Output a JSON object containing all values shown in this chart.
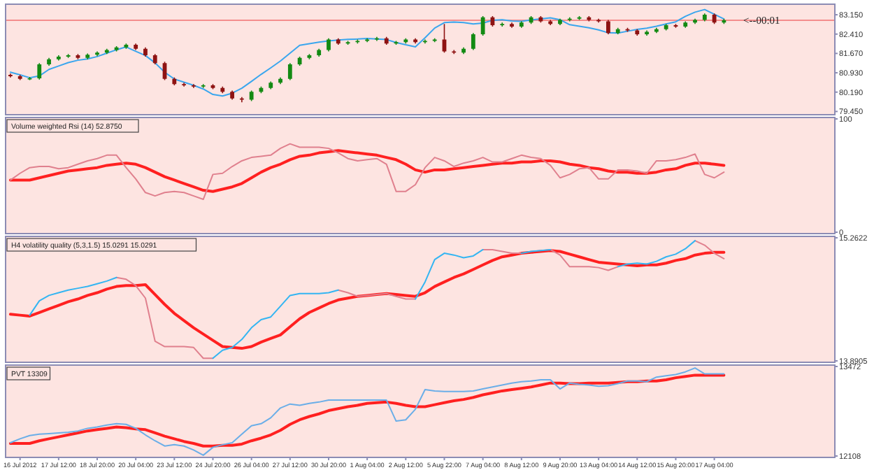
{
  "chart_data": [
    {
      "type": "candlestick",
      "ylim": [
        79.38,
        83.5
      ],
      "tick_labels": "y",
      "yticks": [
        {
          "value": 83.15,
          "label": "83.150"
        },
        {
          "value": 82.41,
          "label": "82.410"
        },
        {
          "value": 81.67,
          "label": "81.670"
        },
        {
          "value": 80.93,
          "label": "80.930"
        },
        {
          "value": 80.19,
          "label": "80.190"
        },
        {
          "value": 79.45,
          "label": "79.450"
        }
      ],
      "categories": [
        null,
        null,
        null,
        null,
        null,
        null,
        null,
        null,
        null,
        null,
        null,
        null,
        null,
        null,
        null,
        null,
        null,
        null,
        null,
        null,
        null,
        null,
        null,
        null,
        null,
        null,
        null,
        null,
        null,
        null,
        null,
        null,
        null,
        null,
        null,
        null,
        null,
        null,
        null,
        null,
        null,
        null,
        null,
        null,
        null,
        null,
        null,
        null,
        null,
        null,
        null,
        null,
        null,
        null,
        null,
        null,
        null,
        null,
        null,
        null,
        null,
        null,
        null,
        null,
        null,
        null,
        null,
        null,
        null,
        null,
        null,
        null,
        null,
        null,
        null,
        null,
        null,
        null,
        null,
        null,
        null,
        null,
        null,
        null,
        null,
        null
      ],
      "ohlc": [
        [
          80.85,
          80.9,
          80.75,
          80.8
        ],
        [
          80.8,
          80.85,
          80.65,
          80.7
        ],
        [
          80.7,
          80.77,
          80.65,
          80.72
        ],
        [
          80.72,
          81.3,
          80.67,
          81.25
        ],
        [
          81.25,
          81.5,
          81.2,
          81.45
        ],
        [
          81.45,
          81.6,
          81.4,
          81.55
        ],
        [
          81.55,
          81.65,
          81.5,
          81.6
        ],
        [
          81.6,
          81.65,
          81.45,
          81.5
        ],
        [
          81.5,
          81.67,
          81.45,
          81.62
        ],
        [
          81.62,
          81.75,
          81.57,
          81.7
        ],
        [
          81.7,
          81.85,
          81.65,
          81.8
        ],
        [
          81.8,
          81.95,
          81.75,
          81.9
        ],
        [
          81.9,
          82.05,
          81.85,
          82.0
        ],
        [
          82.0,
          82.05,
          81.8,
          81.85
        ],
        [
          81.85,
          81.9,
          81.55,
          81.6
        ],
        [
          81.6,
          81.65,
          81.25,
          81.3
        ],
        [
          81.3,
          81.35,
          80.65,
          80.7
        ],
        [
          80.7,
          80.75,
          80.45,
          80.5
        ],
        [
          80.5,
          80.55,
          80.4,
          80.45
        ],
        [
          80.45,
          80.5,
          80.35,
          80.4
        ],
        [
          80.4,
          80.5,
          80.35,
          80.45
        ],
        [
          80.45,
          80.5,
          80.3,
          80.35
        ],
        [
          80.35,
          80.4,
          80.15,
          80.2
        ],
        [
          80.2,
          80.25,
          79.9,
          79.95
        ],
        [
          79.95,
          80.0,
          79.8,
          79.9
        ],
        [
          79.9,
          80.25,
          79.85,
          80.2
        ],
        [
          80.2,
          80.4,
          80.15,
          80.35
        ],
        [
          80.35,
          80.6,
          80.3,
          80.55
        ],
        [
          80.55,
          80.75,
          80.5,
          80.7
        ],
        [
          80.7,
          81.3,
          80.65,
          81.25
        ],
        [
          81.25,
          81.55,
          81.2,
          81.5
        ],
        [
          81.5,
          81.65,
          81.45,
          81.6
        ],
        [
          81.6,
          81.85,
          81.55,
          81.8
        ],
        [
          81.8,
          82.25,
          81.75,
          82.2
        ],
        [
          82.2,
          82.25,
          82.0,
          82.05
        ],
        [
          82.05,
          82.15,
          82.0,
          82.1
        ],
        [
          82.1,
          82.2,
          82.05,
          82.15
        ],
        [
          82.15,
          82.25,
          82.1,
          82.2
        ],
        [
          82.2,
          82.3,
          82.15,
          82.25
        ],
        [
          82.25,
          82.3,
          82.0,
          82.05
        ],
        [
          82.05,
          82.15,
          82.0,
          82.1
        ],
        [
          82.1,
          82.25,
          82.05,
          82.2
        ],
        [
          82.2,
          82.25,
          82.05,
          82.1
        ],
        [
          82.1,
          82.2,
          82.05,
          82.15
        ],
        [
          82.15,
          82.25,
          82.1,
          82.2
        ],
        [
          82.2,
          82.8,
          81.7,
          81.75
        ],
        [
          81.75,
          81.8,
          81.65,
          81.7
        ],
        [
          81.7,
          81.9,
          81.65,
          81.85
        ],
        [
          81.85,
          82.45,
          81.8,
          82.4
        ],
        [
          82.4,
          83.1,
          82.35,
          83.05
        ],
        [
          83.05,
          83.1,
          82.7,
          82.75
        ],
        [
          82.75,
          82.85,
          82.7,
          82.8
        ],
        [
          82.8,
          82.85,
          82.65,
          82.7
        ],
        [
          82.7,
          82.9,
          82.65,
          82.85
        ],
        [
          82.85,
          83.1,
          82.8,
          83.05
        ],
        [
          83.05,
          83.1,
          82.85,
          82.9
        ],
        [
          82.9,
          82.95,
          82.75,
          82.8
        ],
        [
          82.8,
          83.0,
          82.75,
          82.95
        ],
        [
          82.95,
          83.05,
          82.9,
          83.0
        ],
        [
          83.0,
          83.1,
          82.95,
          83.05
        ],
        [
          83.05,
          83.1,
          82.9,
          82.95
        ],
        [
          82.95,
          83.0,
          82.85,
          82.9
        ],
        [
          82.9,
          82.95,
          82.4,
          82.45
        ],
        [
          82.45,
          82.65,
          82.4,
          82.6
        ],
        [
          82.6,
          82.65,
          82.5,
          82.55
        ],
        [
          82.55,
          82.6,
          82.35,
          82.4
        ],
        [
          82.4,
          82.55,
          82.35,
          82.5
        ],
        [
          82.5,
          82.65,
          82.45,
          82.6
        ],
        [
          82.6,
          82.8,
          82.55,
          82.75
        ],
        [
          82.75,
          82.8,
          82.65,
          82.7
        ],
        [
          82.7,
          82.9,
          82.65,
          82.85
        ],
        [
          82.85,
          83.0,
          82.8,
          82.95
        ],
        [
          82.95,
          83.2,
          82.9,
          83.15
        ],
        [
          83.15,
          83.2,
          82.8,
          82.85
        ],
        [
          82.85,
          82.99,
          82.8,
          82.94
        ],
        null,
        null,
        null,
        null,
        null,
        null,
        null,
        null,
        null,
        null,
        null
      ],
      "series": [
        {
          "type": "line",
          "color": "#3aa6ee",
          "values": [
            80.95,
            80.85,
            80.74,
            80.81,
            81.06,
            81.19,
            81.32,
            81.41,
            81.46,
            81.55,
            81.68,
            81.81,
            81.92,
            81.75,
            81.59,
            81.31,
            80.95,
            80.69,
            80.57,
            80.45,
            80.31,
            80.1,
            80.04,
            80.15,
            80.34,
            80.6,
            80.87,
            81.12,
            81.38,
            81.68,
            81.98,
            82.04,
            82.1,
            82.15,
            82.18,
            82.21,
            82.22,
            82.24,
            82.22,
            82.2,
            82.09,
            82.0,
            81.92,
            82.27,
            82.64,
            82.85,
            82.87,
            82.85,
            82.8,
            82.83,
            82.94,
            82.96,
            82.91,
            82.9,
            82.95,
            82.99,
            83.03,
            82.96,
            82.77,
            82.71,
            82.65,
            82.57,
            82.46,
            82.45,
            82.52,
            82.59,
            82.64,
            82.71,
            82.8,
            82.88,
            83.09,
            83.25,
            83.35,
            83.17,
            82.99,
            null,
            null,
            null,
            null,
            null,
            null,
            null,
            null,
            null,
            null,
            null
          ]
        }
      ],
      "ref_lines": [
        {
          "axis": "y",
          "value": 82.94,
          "color": "#f07070"
        }
      ],
      "annotations": [
        {
          "text": "<--00:01",
          "y": 82.94
        }
      ]
    },
    {
      "type": "line",
      "title": "Volume weighted Rsi (14) 52.8750",
      "ylim": [
        0,
        100
      ],
      "yticks": [
        100,
        0
      ],
      "tick_labels": "y",
      "categories": [
        null,
        null,
        null,
        null,
        null,
        null,
        null,
        null,
        null,
        null,
        null,
        null,
        null,
        null,
        null,
        null,
        null,
        null,
        null,
        null,
        null,
        null,
        null,
        null,
        null,
        null,
        null,
        null,
        null,
        null,
        null,
        null,
        null,
        null,
        null,
        null,
        null,
        null,
        null,
        null,
        null,
        null,
        null,
        null,
        null,
        null,
        null,
        null,
        null,
        null,
        null,
        null,
        null,
        null,
        null,
        null,
        null,
        null,
        null,
        null,
        null,
        null,
        null,
        null,
        null,
        null,
        null,
        null,
        null,
        null,
        null,
        null,
        null,
        null,
        null,
        null,
        null,
        null,
        null,
        null,
        null,
        null,
        null,
        null,
        null,
        null
      ],
      "series": [
        {
          "color": "#e0808e",
          "values": [
            46,
            52,
            57,
            58,
            58,
            56,
            57,
            60,
            63,
            65,
            68,
            68,
            57,
            47,
            35,
            32,
            35,
            36,
            35,
            32,
            29,
            51,
            52,
            58,
            63,
            66,
            67,
            68,
            74,
            78,
            75,
            75,
            75,
            74,
            70,
            65,
            63,
            64,
            65,
            60,
            36,
            36,
            42,
            57,
            66,
            63,
            58,
            61,
            63,
            66,
            62,
            62,
            65,
            68,
            66,
            65,
            59,
            48,
            51,
            56,
            57,
            47,
            47,
            55,
            55,
            54,
            52,
            63,
            63,
            64,
            66,
            69,
            51,
            48,
            53,
            null,
            null,
            null,
            null,
            null,
            null,
            null,
            null,
            null,
            null,
            null
          ]
        },
        {
          "color": "#ff2020",
          "values": [
            46,
            46,
            46,
            48,
            50,
            52,
            54,
            55,
            56,
            57,
            59,
            60,
            61,
            60,
            57,
            53,
            49,
            46,
            43,
            40,
            37,
            36,
            38,
            40,
            43,
            48,
            53,
            57,
            60,
            64,
            67,
            68,
            70,
            71,
            72,
            71,
            70,
            69,
            68,
            66,
            64,
            60,
            55,
            53,
            55,
            55,
            56,
            57,
            58,
            59,
            60,
            61,
            61,
            62,
            62,
            63,
            63,
            62,
            60,
            59,
            57,
            56,
            54,
            53,
            53,
            52,
            52,
            53,
            55,
            56,
            59,
            61,
            61,
            60,
            59,
            null,
            null,
            null,
            null,
            null,
            null,
            null,
            null,
            null,
            null,
            null
          ]
        }
      ]
    },
    {
      "type": "line",
      "title": "H4 volatility quality (5,3,1.5) 15.0291 15.0291",
      "ylim": [
        13.8905,
        15.2622
      ],
      "yticks": [
        15.2622,
        13.8905
      ],
      "tick_labels": "y",
      "categories": [
        null,
        null,
        null,
        null,
        null,
        null,
        null,
        null,
        null,
        null,
        null,
        null,
        null,
        null,
        null,
        null,
        null,
        null,
        null,
        null,
        null,
        null,
        null,
        null,
        null,
        null,
        null,
        null,
        null,
        null,
        null,
        null,
        null,
        null,
        null,
        null,
        null,
        null,
        null,
        null,
        null,
        null,
        null,
        null,
        null,
        null,
        null,
        null,
        null,
        null,
        null,
        null,
        null,
        null,
        null,
        null,
        null,
        null,
        null,
        null,
        null,
        null,
        null,
        null,
        null,
        null,
        null,
        null,
        null,
        null,
        null,
        null,
        null,
        null,
        null,
        null,
        null,
        null,
        null,
        null,
        null,
        null,
        null,
        null,
        null,
        null
      ],
      "series": [
        {
          "color": "#e0808e",
          "values": [
            null,
            null,
            null,
            null,
            null,
            null,
            null,
            null,
            null,
            null,
            null,
            14.82,
            14.8,
            14.73,
            14.59,
            14.11,
            14.05,
            14.05,
            14.05,
            14.04,
            13.92,
            13.92,
            null,
            null,
            null,
            null,
            null,
            null,
            null,
            null,
            null,
            null,
            null,
            null,
            14.68,
            14.65,
            14.61,
            14.62,
            14.63,
            14.64,
            14.61,
            14.58,
            14.58,
            null,
            null,
            null,
            null,
            null,
            null,
            15.13,
            15.13,
            15.11,
            15.09,
            15.09,
            null,
            null,
            15.13,
            15.07,
            14.94,
            14.94,
            14.94,
            14.93,
            14.9,
            14.94,
            null,
            null,
            null,
            null,
            null,
            null,
            null,
            15.23,
            15.18,
            15.09,
            15.03,
            null,
            null,
            null,
            null,
            null,
            null,
            null,
            null,
            null,
            null,
            null
          ]
        },
        {
          "color": "#33b5f2",
          "values": [
            null,
            null,
            14.4,
            14.56,
            14.62,
            14.65,
            14.68,
            14.7,
            14.72,
            14.75,
            14.78,
            14.82,
            null,
            null,
            null,
            null,
            null,
            null,
            null,
            null,
            null,
            13.92,
            14.01,
            14.04,
            14.13,
            14.26,
            14.35,
            14.38,
            14.5,
            14.62,
            14.64,
            14.64,
            14.64,
            14.65,
            14.68,
            null,
            null,
            null,
            null,
            null,
            null,
            null,
            14.58,
            14.77,
            15.02,
            15.09,
            15.07,
            15.04,
            15.06,
            15.13,
            null,
            null,
            null,
            15.09,
            15.11,
            15.12,
            15.13,
            null,
            null,
            null,
            null,
            null,
            null,
            14.94,
            14.97,
            14.98,
            14.97,
            15.0,
            15.05,
            15.08,
            15.14,
            15.23,
            null,
            null,
            null,
            null,
            null,
            null,
            null,
            null,
            null,
            null,
            null,
            null,
            null,
            null
          ]
        },
        {
          "color": "#ff2020",
          "values": [
            14.41,
            14.4,
            14.39,
            14.43,
            14.47,
            14.51,
            14.55,
            14.58,
            14.62,
            14.65,
            14.69,
            14.72,
            14.73,
            14.73,
            14.74,
            14.63,
            14.52,
            14.42,
            14.34,
            14.26,
            14.19,
            14.12,
            14.05,
            14.04,
            14.03,
            14.05,
            14.1,
            14.14,
            14.18,
            14.27,
            14.36,
            14.43,
            14.48,
            14.53,
            14.57,
            14.59,
            14.61,
            14.62,
            14.63,
            14.64,
            14.63,
            14.62,
            14.61,
            14.65,
            14.72,
            14.77,
            14.82,
            14.86,
            14.91,
            14.96,
            15.01,
            15.05,
            15.07,
            15.09,
            15.1,
            15.11,
            15.12,
            15.11,
            15.08,
            15.05,
            15.02,
            14.99,
            14.98,
            14.97,
            14.96,
            14.95,
            14.96,
            14.96,
            14.98,
            15.01,
            15.03,
            15.07,
            15.09,
            15.1,
            15.1,
            null,
            null,
            null,
            null,
            null,
            null,
            null,
            null,
            null,
            null,
            null
          ]
        }
      ]
    },
    {
      "type": "line",
      "title": "PVT 13309",
      "ylim": [
        12108,
        13472
      ],
      "yticks": [
        13472,
        12108
      ],
      "categories": [
        null,
        "16 Jul 2012",
        null,
        null,
        null,
        "17 Jul 12:00",
        null,
        null,
        null,
        "18 Jul 20:00",
        null,
        null,
        null,
        "20 Jul 04:00",
        null,
        null,
        null,
        "23 Jul 12:00",
        null,
        null,
        null,
        "24 Jul 20:00",
        null,
        null,
        null,
        "26 Jul 04:00",
        null,
        null,
        null,
        "27 Jul 12:00",
        null,
        null,
        null,
        "30 Jul 20:00",
        null,
        null,
        null,
        "1 Aug 04:00",
        null,
        null,
        null,
        "2 Aug 12:00",
        null,
        null,
        null,
        "5 Aug 22:00",
        null,
        null,
        null,
        "7 Aug 04:00",
        null,
        null,
        null,
        "8 Aug 12:00",
        null,
        null,
        null,
        "9 Aug 20:00",
        null,
        null,
        null,
        "13 Aug 04:00",
        null,
        null,
        null,
        "14 Aug 12:00",
        null,
        null,
        null,
        "15 Aug 20:00",
        null,
        null,
        null,
        "17 Aug 04:00",
        null,
        null,
        null,
        null,
        null,
        null,
        null,
        null,
        null,
        null,
        null,
        null
      ],
      "series": [
        {
          "color": "#6aaee8",
          "values": [
            12310,
            12370,
            12420,
            12440,
            12450,
            12460,
            12470,
            12490,
            12530,
            12550,
            12580,
            12600,
            12590,
            12530,
            12430,
            12340,
            12260,
            12280,
            12260,
            12200,
            12120,
            12240,
            12280,
            12310,
            12440,
            12570,
            12600,
            12690,
            12840,
            12900,
            12880,
            12910,
            12930,
            12960,
            12960,
            12960,
            12960,
            12960,
            12960,
            12960,
            12640,
            12660,
            12820,
            13120,
            13100,
            13090,
            13090,
            13090,
            13100,
            13130,
            13160,
            13190,
            13220,
            13240,
            13250,
            13270,
            13270,
            13130,
            13220,
            13200,
            13190,
            13170,
            13180,
            13210,
            13250,
            13250,
            13240,
            13310,
            13330,
            13350,
            13390,
            13450,
            13360,
            13360,
            13360,
            null,
            null,
            null,
            null,
            null,
            null,
            null,
            null,
            null,
            null,
            null
          ]
        },
        {
          "color": "#ff2020",
          "values": [
            12300,
            12300,
            12300,
            12340,
            12370,
            12400,
            12430,
            12460,
            12490,
            12510,
            12530,
            12550,
            12540,
            12520,
            12510,
            12460,
            12410,
            12370,
            12330,
            12300,
            12260,
            12260,
            12270,
            12270,
            12290,
            12340,
            12380,
            12430,
            12500,
            12590,
            12660,
            12710,
            12750,
            12800,
            12830,
            12860,
            12880,
            12910,
            12920,
            12930,
            12910,
            12880,
            12860,
            12860,
            12890,
            12920,
            12950,
            12970,
            13000,
            13040,
            13070,
            13100,
            13120,
            13140,
            13160,
            13190,
            13220,
            13220,
            13210,
            13210,
            13220,
            13220,
            13220,
            13230,
            13240,
            13240,
            13250,
            13250,
            13270,
            13300,
            13320,
            13340,
            13340,
            13340,
            13340,
            null,
            null,
            null,
            null,
            null,
            null,
            null,
            null,
            null,
            null,
            null
          ]
        }
      ]
    }
  ]
}
